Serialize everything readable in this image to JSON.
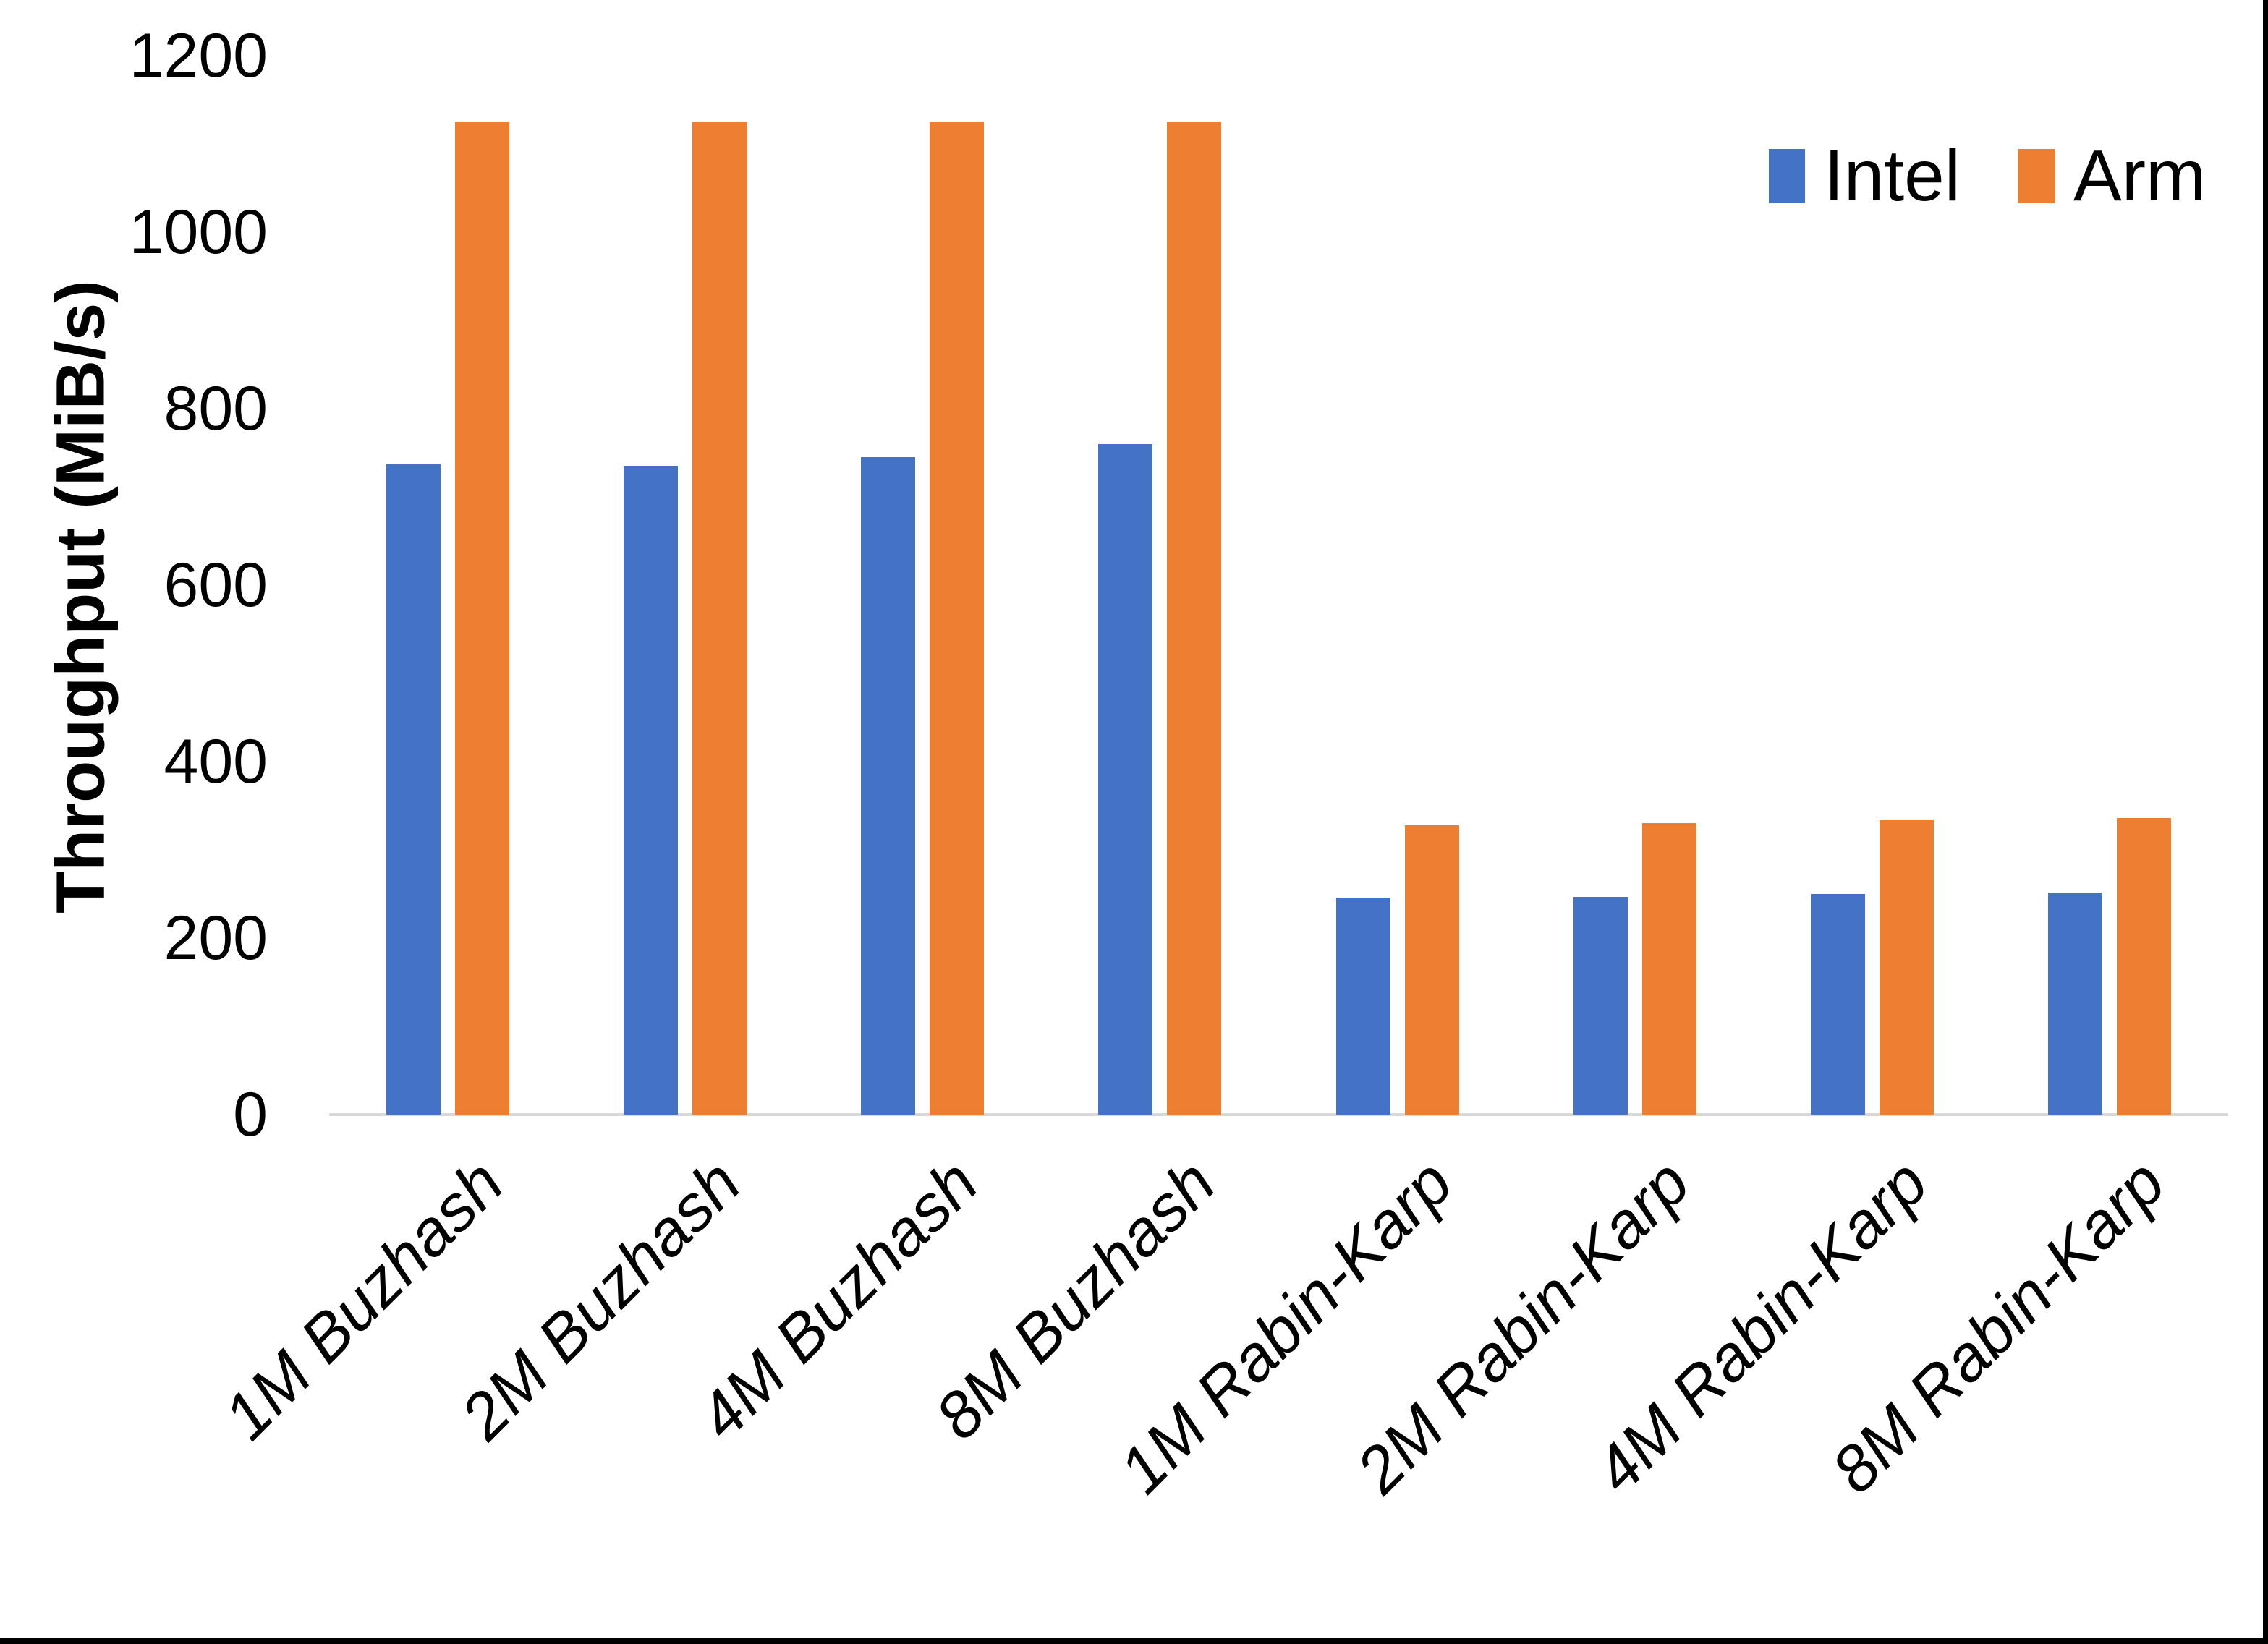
{
  "chart_data": {
    "type": "bar",
    "title": "",
    "ylabel": "Throughput (MiB/s)",
    "xlabel": "",
    "categories": [
      "1M Buzhash",
      "2M Buzhash",
      "4M Buzhash",
      "8M Buzhash",
      "1M Rabin-Karp",
      "2M Rabin-Karp",
      "4M Rabin-Karp",
      "8M Rabin-Karp"
    ],
    "series": [
      {
        "name": "Intel",
        "color": "#4472C4",
        "values": [
          737,
          735,
          745,
          760,
          246,
          247,
          250,
          252
        ]
      },
      {
        "name": "Arm",
        "color": "#ED7D31",
        "values": [
          1125,
          1125,
          1125,
          1125,
          328,
          330,
          334,
          336
        ]
      }
    ],
    "ylim": [
      0,
      1200
    ],
    "yticks": [
      0,
      200,
      400,
      600,
      800,
      1000,
      1200
    ],
    "grid": false,
    "legend_position": "top-right",
    "axis_line_color": "#D9D9D9",
    "text_color": "#000000"
  },
  "legend": {
    "intel_label": "Intel",
    "arm_label": "Arm"
  },
  "border_color": "#000000"
}
